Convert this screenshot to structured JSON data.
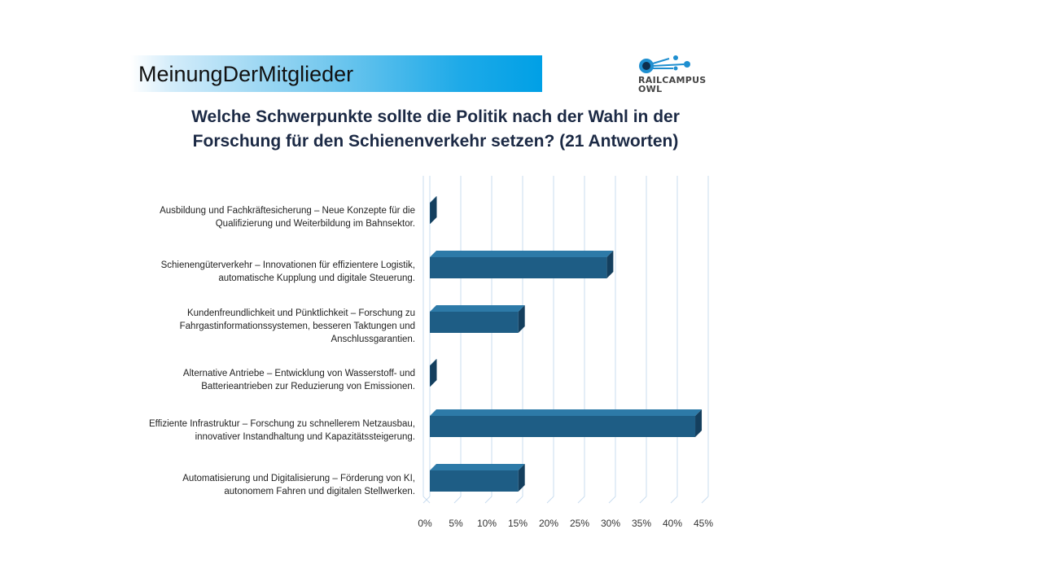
{
  "banner": {
    "text": "MeinungDerMitglieder"
  },
  "logo": {
    "line1": "RAILCAMPUS",
    "line2": "OWL"
  },
  "title": {
    "line1": "Welche Schwerpunkte sollte die Politik nach der Wahl in der",
    "line2": "Forschung für den Schienenverkehr setzen?  (21 Antworten)"
  },
  "colors": {
    "bar": "#1e5d85",
    "bar_top": "#2d7aa8",
    "bar_side": "#143f5e",
    "grid": "#c8dcef",
    "banner_end": "#00a0e6"
  },
  "chart_data": {
    "type": "bar",
    "orientation": "horizontal",
    "categories": [
      {
        "lines": [
          "Ausbildung und Fachkräftesicherung – Neue Konzepte für die",
          "Qualifizierung und Weiterbildung im Bahnsektor."
        ]
      },
      {
        "lines": [
          "Schienengüterverkehr – Innovationen für effizientere Logistik,",
          "automatische Kupplung und digitale Steuerung."
        ]
      },
      {
        "lines": [
          "Kundenfreundlichkeit und Pünktlichkeit – Forschung zu",
          "Fahrgastinformationssystemen, besseren Taktungen und",
          "Anschlussgarantien."
        ]
      },
      {
        "lines": [
          "Alternative Antriebe – Entwicklung von Wasserstoff- und",
          "Batterieantrieben zur Reduzierung von Emissionen."
        ]
      },
      {
        "lines": [
          "Effiziente Infrastruktur – Forschung zu schnellerem Netzausbau,",
          "innovativer Instandhaltung und Kapazitätssteigerung."
        ]
      },
      {
        "lines": [
          "Automatisierung und Digitalisierung – Förderung von KI,",
          "autonomem Fahren und digitalen Stellwerken."
        ]
      }
    ],
    "values": [
      0,
      28.6,
      14.3,
      0,
      42.9,
      14.3
    ],
    "xlim": [
      0,
      45
    ],
    "xticks": [
      "0%",
      "5%",
      "10%",
      "15%",
      "20%",
      "25%",
      "30%",
      "35%",
      "40%",
      "45%"
    ],
    "grid": true
  }
}
